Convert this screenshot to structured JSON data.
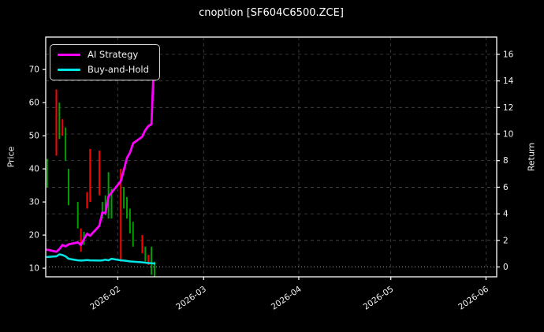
{
  "title": "cnoption [SF604C6500.ZCE]",
  "colors": {
    "background": "#000000",
    "text": "#f2f2f2",
    "axis": "#ffffff",
    "grid": "#494949",
    "zero_line": "#9a9a9a",
    "ai_strategy": "#ff00ff",
    "buy_and_hold": "#00e5e5",
    "candle_up": "#00a000",
    "candle_down": "#ff0000"
  },
  "legend": {
    "items": [
      {
        "label": "AI Strategy",
        "color_key": "ai_strategy"
      },
      {
        "label": "Buy-and-Hold",
        "color_key": "buy_and_hold"
      }
    ]
  },
  "chart_data": {
    "type": "candlestick+line",
    "title": "cnoption [SF604C6500.ZCE]",
    "grid": true,
    "legend_position": "upper left",
    "x_axis": {
      "range": [
        "2026-01-08T13:00:00Z",
        "2026-06-04T12:00:00Z"
      ],
      "tick_dates": [
        "2026-02-01",
        "2026-03-01",
        "2026-04-01",
        "2026-05-01",
        "2026-06-01"
      ],
      "tick_labels": [
        "2026-02",
        "2026-03",
        "2026-04",
        "2026-05",
        "2026-06"
      ],
      "tick_label_rotation": -35
    },
    "left_axis": {
      "label": "Price",
      "ticks": [
        10,
        20,
        30,
        40,
        50,
        60,
        70
      ],
      "range": [
        7.4,
        79.8
      ]
    },
    "right_axis": {
      "label": "Return",
      "ticks": [
        0,
        2,
        4,
        6,
        8,
        10,
        12,
        14,
        16
      ],
      "range": [
        -0.74,
        17.3
      ]
    },
    "dates": [
      "2026-01-09",
      "2026-01-12",
      "2026-01-13",
      "2026-01-14",
      "2026-01-15",
      "2026-01-16",
      "2026-01-19",
      "2026-01-20",
      "2026-01-21",
      "2026-01-22",
      "2026-01-23",
      "2026-01-26",
      "2026-01-27",
      "2026-01-28",
      "2026-01-29",
      "2026-01-30",
      "2026-02-02",
      "2026-02-03",
      "2026-02-04",
      "2026-02-05",
      "2026-02-06",
      "2026-02-09",
      "2026-02-10",
      "2026-02-11",
      "2026-02-12",
      "2026-02-13"
    ],
    "candles": {
      "axis": "left",
      "high": [
        43,
        64,
        60,
        55,
        52.5,
        40,
        30,
        22,
        21,
        33,
        46,
        45.5,
        30,
        32,
        39,
        34,
        40,
        34.5,
        31.5,
        28,
        24,
        20,
        16.5,
        14,
        16.5,
        12
      ],
      "low": [
        34.5,
        44,
        49,
        50,
        42.5,
        29,
        22,
        15,
        17,
        28,
        30,
        32,
        25,
        26,
        25,
        25,
        12,
        28,
        25,
        20.5,
        16.5,
        14.5,
        12,
        11,
        8,
        7
      ],
      "direction": [
        "up",
        "down",
        "up",
        "down",
        "up",
        "up",
        "up",
        "down",
        "up",
        "down",
        "down",
        "down",
        "up",
        "up",
        "up",
        "up",
        "down",
        "up",
        "up",
        "up",
        "up",
        "down",
        "up",
        "down",
        "up",
        "up"
      ]
    },
    "series": [
      {
        "name": "AI Strategy",
        "axis": "right",
        "color_key": "ai_strategy",
        "values": [
          1.3,
          1.15,
          1.35,
          1.65,
          1.55,
          1.7,
          1.85,
          1.65,
          2.1,
          2.5,
          2.35,
          3.1,
          4.1,
          4.05,
          5.3,
          5.6,
          6.45,
          7.3,
          8.2,
          8.6,
          9.3,
          9.8,
          10.3,
          10.6,
          10.75,
          16.4
        ]
      },
      {
        "name": "Buy-and-Hold",
        "axis": "right",
        "color_key": "buy_and_hold",
        "values": [
          0.75,
          0.8,
          0.95,
          0.9,
          0.8,
          0.62,
          0.5,
          0.48,
          0.5,
          0.52,
          0.5,
          0.48,
          0.5,
          0.55,
          0.5,
          0.62,
          0.5,
          0.48,
          0.45,
          0.42,
          0.4,
          0.35,
          0.32,
          0.3,
          0.28,
          0.25
        ]
      }
    ]
  }
}
